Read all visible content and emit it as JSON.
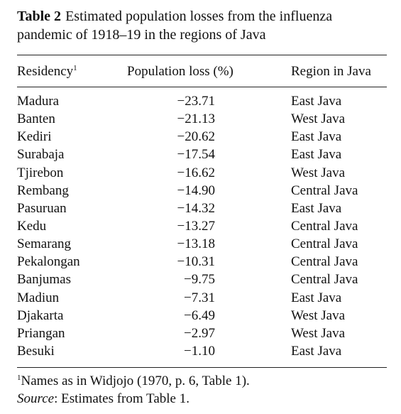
{
  "caption": {
    "label": "Table 2",
    "line1": "Estimated population losses from the influenza",
    "line2": "pandemic of 1918–19 in the regions of Java"
  },
  "headers": {
    "residency": "Residency",
    "residency_sup": "1",
    "loss": "Population loss (%)",
    "region": "Region in Java"
  },
  "rows": [
    {
      "residency": "Madura",
      "loss": "−23.71",
      "region": "East Java"
    },
    {
      "residency": "Banten",
      "loss": "−21.13",
      "region": "West Java"
    },
    {
      "residency": "Kediri",
      "loss": "−20.62",
      "region": "East Java"
    },
    {
      "residency": "Surabaja",
      "loss": "−17.54",
      "region": "East Java"
    },
    {
      "residency": "Tjirebon",
      "loss": "−16.62",
      "region": "West Java"
    },
    {
      "residency": "Rembang",
      "loss": "−14.90",
      "region": "Central Java"
    },
    {
      "residency": "Pasuruan",
      "loss": "−14.32",
      "region": "East Java"
    },
    {
      "residency": "Kedu",
      "loss": "−13.27",
      "region": "Central Java"
    },
    {
      "residency": "Semarang",
      "loss": "−13.18",
      "region": "Central Java"
    },
    {
      "residency": "Pekalongan",
      "loss": "−10.31",
      "region": "Central Java"
    },
    {
      "residency": "Banjumas",
      "loss": "−9.75",
      "region": "Central Java"
    },
    {
      "residency": "Madiun",
      "loss": "−7.31",
      "region": "East Java"
    },
    {
      "residency": "Djakarta",
      "loss": "−6.49",
      "region": "West Java"
    },
    {
      "residency": "Priangan",
      "loss": "−2.97",
      "region": "West Java"
    },
    {
      "residency": "Besuki",
      "loss": "−1.10",
      "region": "East Java"
    }
  ],
  "footnote": {
    "sup": "1",
    "text": "Names as in Widjojo (1970, p. 6, Table 1)."
  },
  "source": {
    "label": "Source",
    "text": ": Estimates from Table 1."
  }
}
